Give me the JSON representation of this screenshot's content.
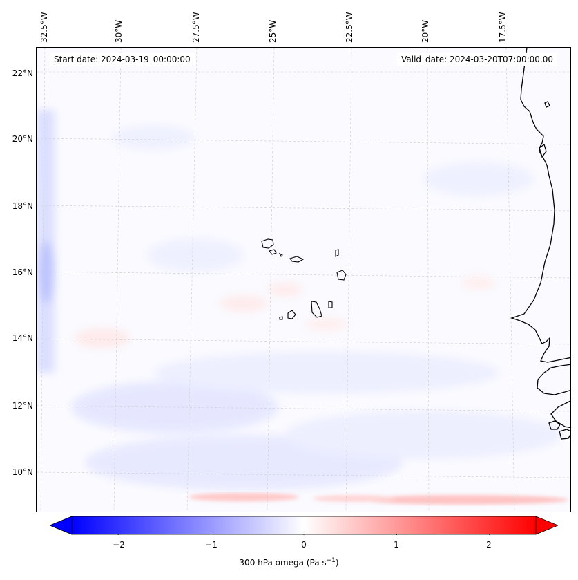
{
  "header": {
    "start_date": "Start date: 2024-03-19_00:00:00",
    "valid_date": "Valid_date: 2024-03-20T07:00:00.00"
  },
  "axes": {
    "lon_labels": [
      "32.5°W",
      "30°W",
      "27.5°W",
      "25°W",
      "22.5°W",
      "20°W",
      "17.5°W"
    ],
    "lat_labels": [
      "22°N",
      "20°N",
      "18°N",
      "16°N",
      "14°N",
      "12°N",
      "10°N"
    ]
  },
  "colorbar": {
    "ticks": [
      "−2",
      "−1",
      "0",
      "1",
      "2"
    ],
    "tick_values": [
      -2,
      -1,
      0,
      1,
      2
    ],
    "range": [
      -2.5,
      2.5
    ],
    "label_prefix": "300 hPa omega (Pa s",
    "label_exp": "−1",
    "label_suffix": ")",
    "colors": {
      "min": "#0000ff",
      "mid": "#ffffff",
      "max": "#ff0000"
    }
  },
  "map": {
    "background_color": "#fafaff",
    "coastline_color": "#000000",
    "gridline_color": "#cccccc"
  }
}
